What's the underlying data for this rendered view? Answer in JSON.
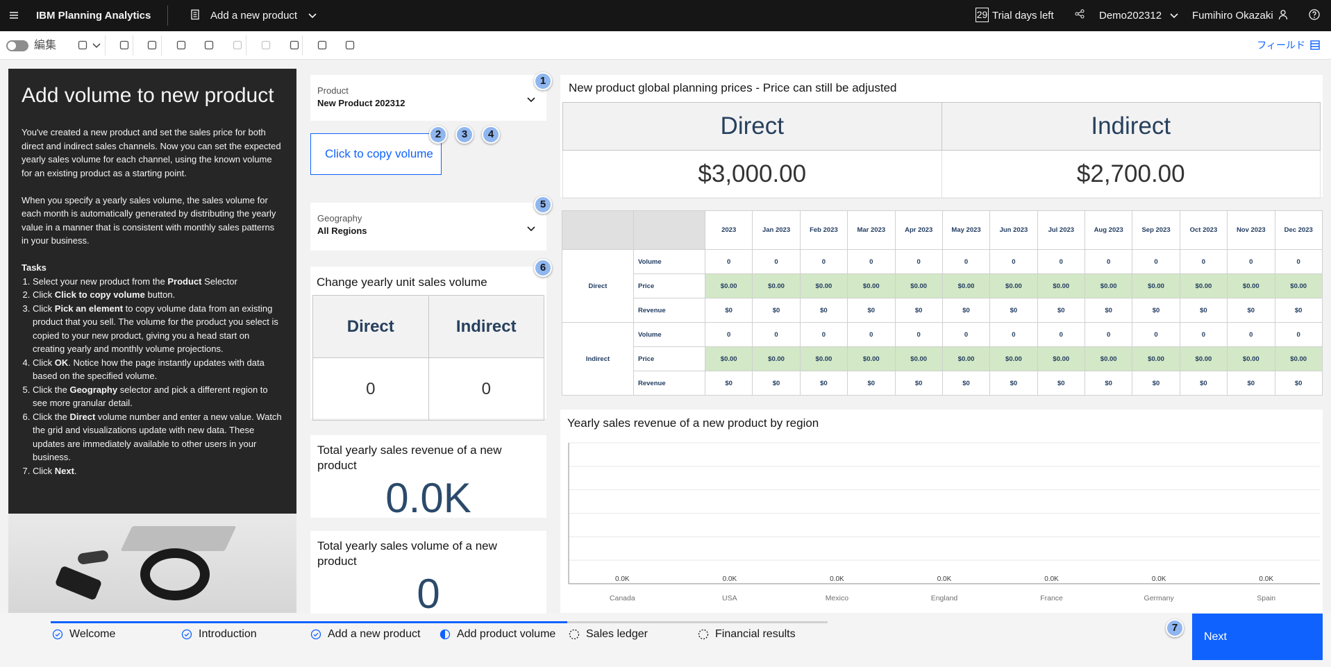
{
  "header": {
    "app": "IBM Planning Analytics",
    "page": "Add a new product",
    "trial_days": "29",
    "trial_text": "Trial days left",
    "server": "Demo202312",
    "user": "Fumihiro Okazaki"
  },
  "toolbar": {
    "edit": "編集",
    "fields": "フィールド"
  },
  "intro": {
    "title": "Add volume to new product",
    "paragraphs": [
      "You've created a new product and set the sales price for both direct and indirect sales channels. Now you can set the expected yearly sales volume for each channel, using the known volume for an existing product as a starting point.",
      "When you specify a yearly sales volume, the sales volume for each month is automatically generated by distributing the yearly value in a manner that is consistent with monthly sales patterns in your business."
    ],
    "tasks_title": "Tasks",
    "tasks": [
      [
        "Select your new product from the ",
        "Product",
        " Selector"
      ],
      [
        "Click ",
        "Click to copy volume",
        " button."
      ],
      [
        "Click ",
        "Pick an element",
        " to copy volume data from an existing product that you sell. The volume for the product you select is copied to your new product, giving you a head start on creating yearly and monthly volume projections."
      ],
      [
        "Click ",
        "OK",
        ". Notice how the page instantly updates with data based on the specified volume."
      ],
      [
        "Click the ",
        "Geography",
        " selector and pick a different region to see more granular detail."
      ],
      [
        "Click the ",
        "Direct",
        " volume number and enter a new value. Watch the grid and visualizations update with new data. These updates are immediately available to other users in your business."
      ],
      [
        "Click ",
        "Next",
        "."
      ]
    ]
  },
  "product_selector": {
    "label": "Product",
    "value": "New Product 202312"
  },
  "copy_button": "Click to copy volume",
  "geography_selector": {
    "label": "Geography",
    "value": "All Regions"
  },
  "badges": [
    "1",
    "2",
    "3",
    "4",
    "5",
    "6",
    "7"
  ],
  "volume_widget": {
    "title": "Change yearly unit sales volume",
    "headers": [
      "Direct",
      "Indirect"
    ],
    "values": [
      "0",
      "0"
    ]
  },
  "revenue_kpi": {
    "title": "Total yearly sales revenue of a new product",
    "value": "0.0K"
  },
  "volume_kpi": {
    "title": "Total yearly sales volume of a new product",
    "value": "0"
  },
  "prices": {
    "title": "New product global planning prices - Price can still be adjusted",
    "headers": [
      "Direct",
      "Indirect"
    ],
    "values": [
      "$3,000.00",
      "$2,700.00"
    ]
  },
  "grid": {
    "columns": [
      "2023",
      "Jan 2023",
      "Feb 2023",
      "Mar 2023",
      "Apr 2023",
      "May 2023",
      "Jun 2023",
      "Jul 2023",
      "Aug 2023",
      "Sep 2023",
      "Oct 2023",
      "Nov 2023",
      "Dec 2023"
    ],
    "rows": [
      {
        "group": "Direct",
        "measure": "Volume",
        "cells": [
          "0",
          "0",
          "0",
          "0",
          "0",
          "0",
          "0",
          "0",
          "0",
          "0",
          "0",
          "0",
          "0"
        ]
      },
      {
        "group": null,
        "measure": "Price",
        "cells": [
          "$0.00",
          "$0.00",
          "$0.00",
          "$0.00",
          "$0.00",
          "$0.00",
          "$0.00",
          "$0.00",
          "$0.00",
          "$0.00",
          "$0.00",
          "$0.00",
          "$0.00"
        ]
      },
      {
        "group": null,
        "measure": "Revenue",
        "cells": [
          "$0",
          "$0",
          "$0",
          "$0",
          "$0",
          "$0",
          "$0",
          "$0",
          "$0",
          "$0",
          "$0",
          "$0",
          "$0"
        ]
      },
      {
        "group": "Indirect",
        "measure": "Volume",
        "cells": [
          "0",
          "0",
          "0",
          "0",
          "0",
          "0",
          "0",
          "0",
          "0",
          "0",
          "0",
          "0",
          "0"
        ]
      },
      {
        "group": null,
        "measure": "Price",
        "cells": [
          "$0.00",
          "$0.00",
          "$0.00",
          "$0.00",
          "$0.00",
          "$0.00",
          "$0.00",
          "$0.00",
          "$0.00",
          "$0.00",
          "$0.00",
          "$0.00",
          "$0.00"
        ]
      },
      {
        "group": null,
        "measure": "Revenue",
        "cells": [
          "$0",
          "$0",
          "$0",
          "$0",
          "$0",
          "$0",
          "$0",
          "$0",
          "$0",
          "$0",
          "$0",
          "$0",
          "$0"
        ]
      }
    ]
  },
  "revenue_chart": {
    "type": "bar",
    "title": "Yearly sales revenue of a new product by region",
    "categories": [
      "Canada",
      "USA",
      "Mexico",
      "England",
      "France",
      "Germany",
      "Spain"
    ],
    "values": [
      0,
      0,
      0,
      0,
      0,
      0,
      0
    ],
    "value_labels": [
      "0.0K",
      "0.0K",
      "0.0K",
      "0.0K",
      "0.0K",
      "0.0K",
      "0.0K"
    ],
    "color": "#5b8fc9"
  },
  "steps": [
    {
      "label": "Welcome",
      "status": "complete"
    },
    {
      "label": "Introduction",
      "status": "complete"
    },
    {
      "label": "Add a new product",
      "status": "complete"
    },
    {
      "label": "Add product volume",
      "status": "current"
    },
    {
      "label": "Sales ledger",
      "status": "todo"
    },
    {
      "label": "Financial results",
      "status": "todo"
    }
  ],
  "next": "Next"
}
